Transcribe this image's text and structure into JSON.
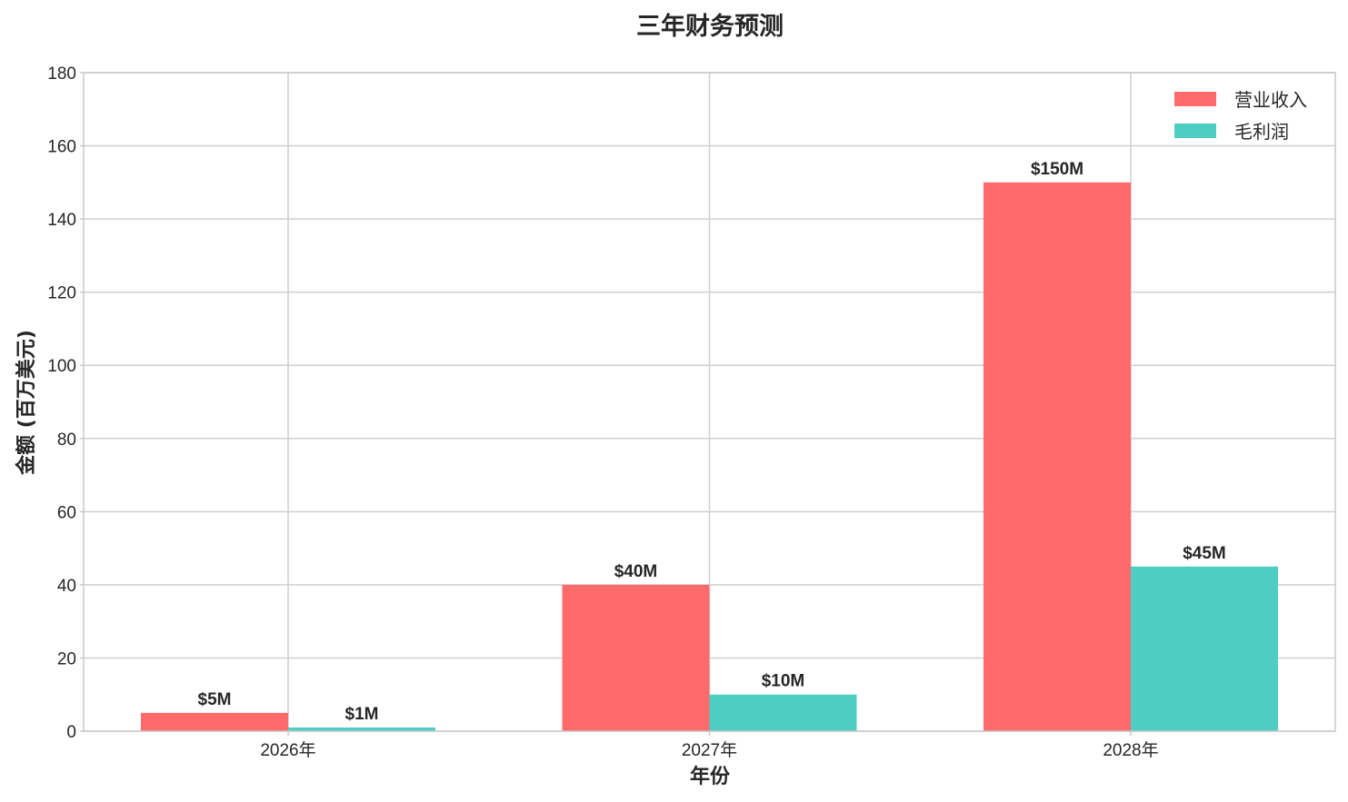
{
  "chart_data": {
    "type": "bar",
    "title": "三年财务预测",
    "xlabel": "年份",
    "ylabel": "金额 (百万美元)",
    "categories": [
      "2026年",
      "2027年",
      "2028年"
    ],
    "ylim": [
      0,
      180
    ],
    "yticks": [
      0,
      20,
      40,
      60,
      80,
      100,
      120,
      140,
      160,
      180
    ],
    "grid": true,
    "legend_position": "top-right",
    "series": [
      {
        "name": "营业收入",
        "color": "#FF6B6B",
        "values": [
          5,
          40,
          150
        ],
        "labels": [
          "$5M",
          "$40M",
          "$150M"
        ]
      },
      {
        "name": "毛利润",
        "color": "#4ECDC4",
        "values": [
          1,
          10,
          45
        ],
        "labels": [
          "$1M",
          "$10M",
          "$45M"
        ]
      }
    ]
  }
}
